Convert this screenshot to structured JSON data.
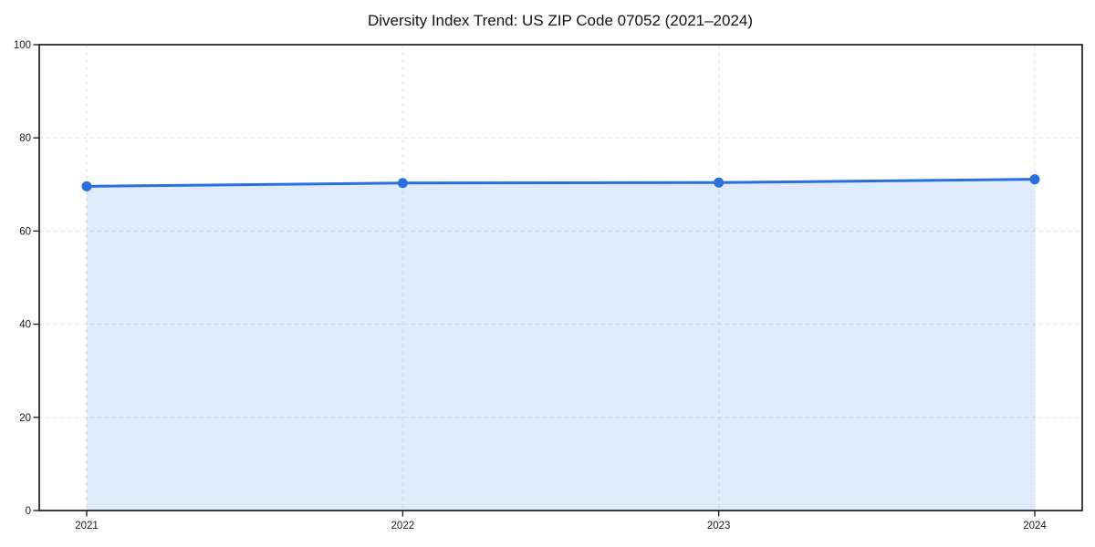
{
  "chart_data": {
    "type": "area",
    "title": "Diversity Index Trend: US ZIP Code 07052 (2021–2024)",
    "categories": [
      "2021",
      "2022",
      "2023",
      "2024"
    ],
    "series": [
      {
        "name": "Diversity Index",
        "values": [
          69.6,
          70.3,
          70.4,
          71.1
        ]
      }
    ],
    "xlabel": "",
    "ylabel": "",
    "ylim": [
      0,
      100
    ],
    "yticks": [
      0,
      20,
      40,
      60,
      80,
      100
    ],
    "grid": true,
    "grid_style": "dashed",
    "legend_position": "none",
    "colors": {
      "line": "#2a6fdb",
      "marker": "#2a6fdb",
      "fill": "rgba(42,111,219,0.15)",
      "grid": "#e2e2e2",
      "axis": "#000000",
      "tick_label": "#1a1a1a",
      "title": "#111111",
      "background": "#ffffff"
    }
  }
}
